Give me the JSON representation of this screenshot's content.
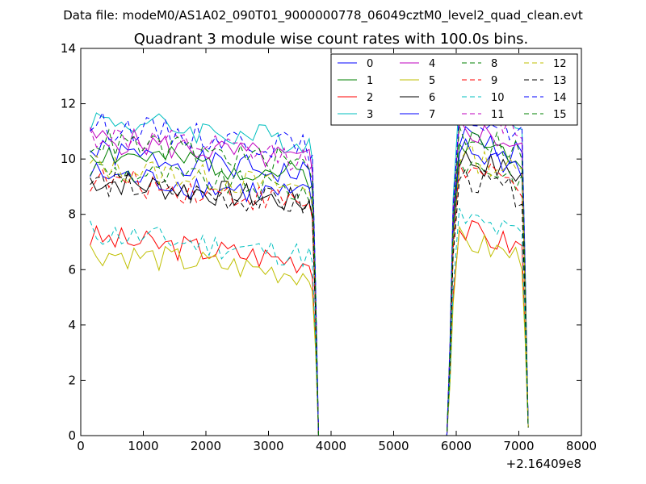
{
  "chart_data": {
    "type": "line",
    "suptitle": "Data file: modeM0/AS1A02_090T01_9000000778_06049cztM0_level2_quad_clean.evt",
    "title": "Quadrant 3 module wise count rates with 100.0s bins.",
    "xlabel": "",
    "ylabel": "",
    "xlim": [
      0,
      8000
    ],
    "ylim": [
      0,
      14
    ],
    "x_ticks": [
      0,
      1000,
      2000,
      3000,
      4000,
      5000,
      6000,
      7000,
      8000
    ],
    "y_ticks": [
      0,
      2,
      4,
      6,
      8,
      10,
      12,
      14
    ],
    "x_offset_label": "+2.16409e8",
    "grid": false,
    "legend_placement": "upper-right, 4 columns",
    "x": [
      150,
      250,
      350,
      450,
      550,
      650,
      750,
      850,
      950,
      1050,
      1150,
      1250,
      1350,
      1450,
      1550,
      1650,
      1750,
      1850,
      1950,
      2050,
      2150,
      2250,
      2350,
      2450,
      2550,
      2650,
      2750,
      2850,
      2950,
      3050,
      3150,
      3250,
      3350,
      3450,
      3550,
      3650,
      3700,
      3750,
      3800,
      5850,
      5900,
      5950,
      6050,
      6150,
      6250,
      6350,
      6450,
      6550,
      6650,
      6750,
      6850,
      6950,
      7050,
      7100,
      7150
    ],
    "series": [
      {
        "name": "0",
        "color": "#0000ff",
        "dash": "solid",
        "level": 9.4,
        "end": 10.1,
        "seed": 1
      },
      {
        "name": "1",
        "color": "#008000",
        "dash": "solid",
        "level": 9.4,
        "end": 10.0,
        "seed": 2
      },
      {
        "name": "2",
        "color": "#ff0000",
        "dash": "solid",
        "level": 6.3,
        "end": 6.7,
        "seed": 3
      },
      {
        "name": "3",
        "color": "#00bfbf",
        "dash": "solid",
        "level": 10.6,
        "end": 11.4,
        "seed": 4
      },
      {
        "name": "4",
        "color": "#bf00bf",
        "dash": "solid",
        "level": 9.9,
        "end": 10.4,
        "seed": 5
      },
      {
        "name": "5",
        "color": "#bfbf00",
        "dash": "solid",
        "level": 5.8,
        "end": 6.3,
        "seed": 6
      },
      {
        "name": "6",
        "color": "#000000",
        "dash": "solid",
        "level": 8.4,
        "end": 9.3,
        "seed": 7
      },
      {
        "name": "7",
        "color": "#0000ff",
        "dash": "solid",
        "level": 8.6,
        "end": 9.6,
        "seed": 8
      },
      {
        "name": "8",
        "color": "#008000",
        "dash": "dashed",
        "level": 8.8,
        "end": 9.2,
        "seed": 9
      },
      {
        "name": "9",
        "color": "#ff0000",
        "dash": "dashed",
        "level": 8.4,
        "end": 8.9,
        "seed": 10
      },
      {
        "name": "10",
        "color": "#00bfbf",
        "dash": "dashed",
        "level": 6.5,
        "end": 7.1,
        "seed": 11
      },
      {
        "name": "11",
        "color": "#bf00bf",
        "dash": "dashed",
        "level": 10.0,
        "end": 11.0,
        "seed": 12
      },
      {
        "name": "12",
        "color": "#bfbf00",
        "dash": "dashed",
        "level": 8.9,
        "end": 9.4,
        "seed": 13
      },
      {
        "name": "13",
        "color": "#000000",
        "dash": "dashed",
        "level": 8.3,
        "end": 8.6,
        "seed": 14
      },
      {
        "name": "14",
        "color": "#0000ff",
        "dash": "dashed",
        "level": 10.4,
        "end": 10.9,
        "seed": 15
      },
      {
        "name": "15",
        "color": "#008000",
        "dash": "dashed",
        "level": 9.8,
        "end": 10.2,
        "seed": 16
      }
    ]
  }
}
